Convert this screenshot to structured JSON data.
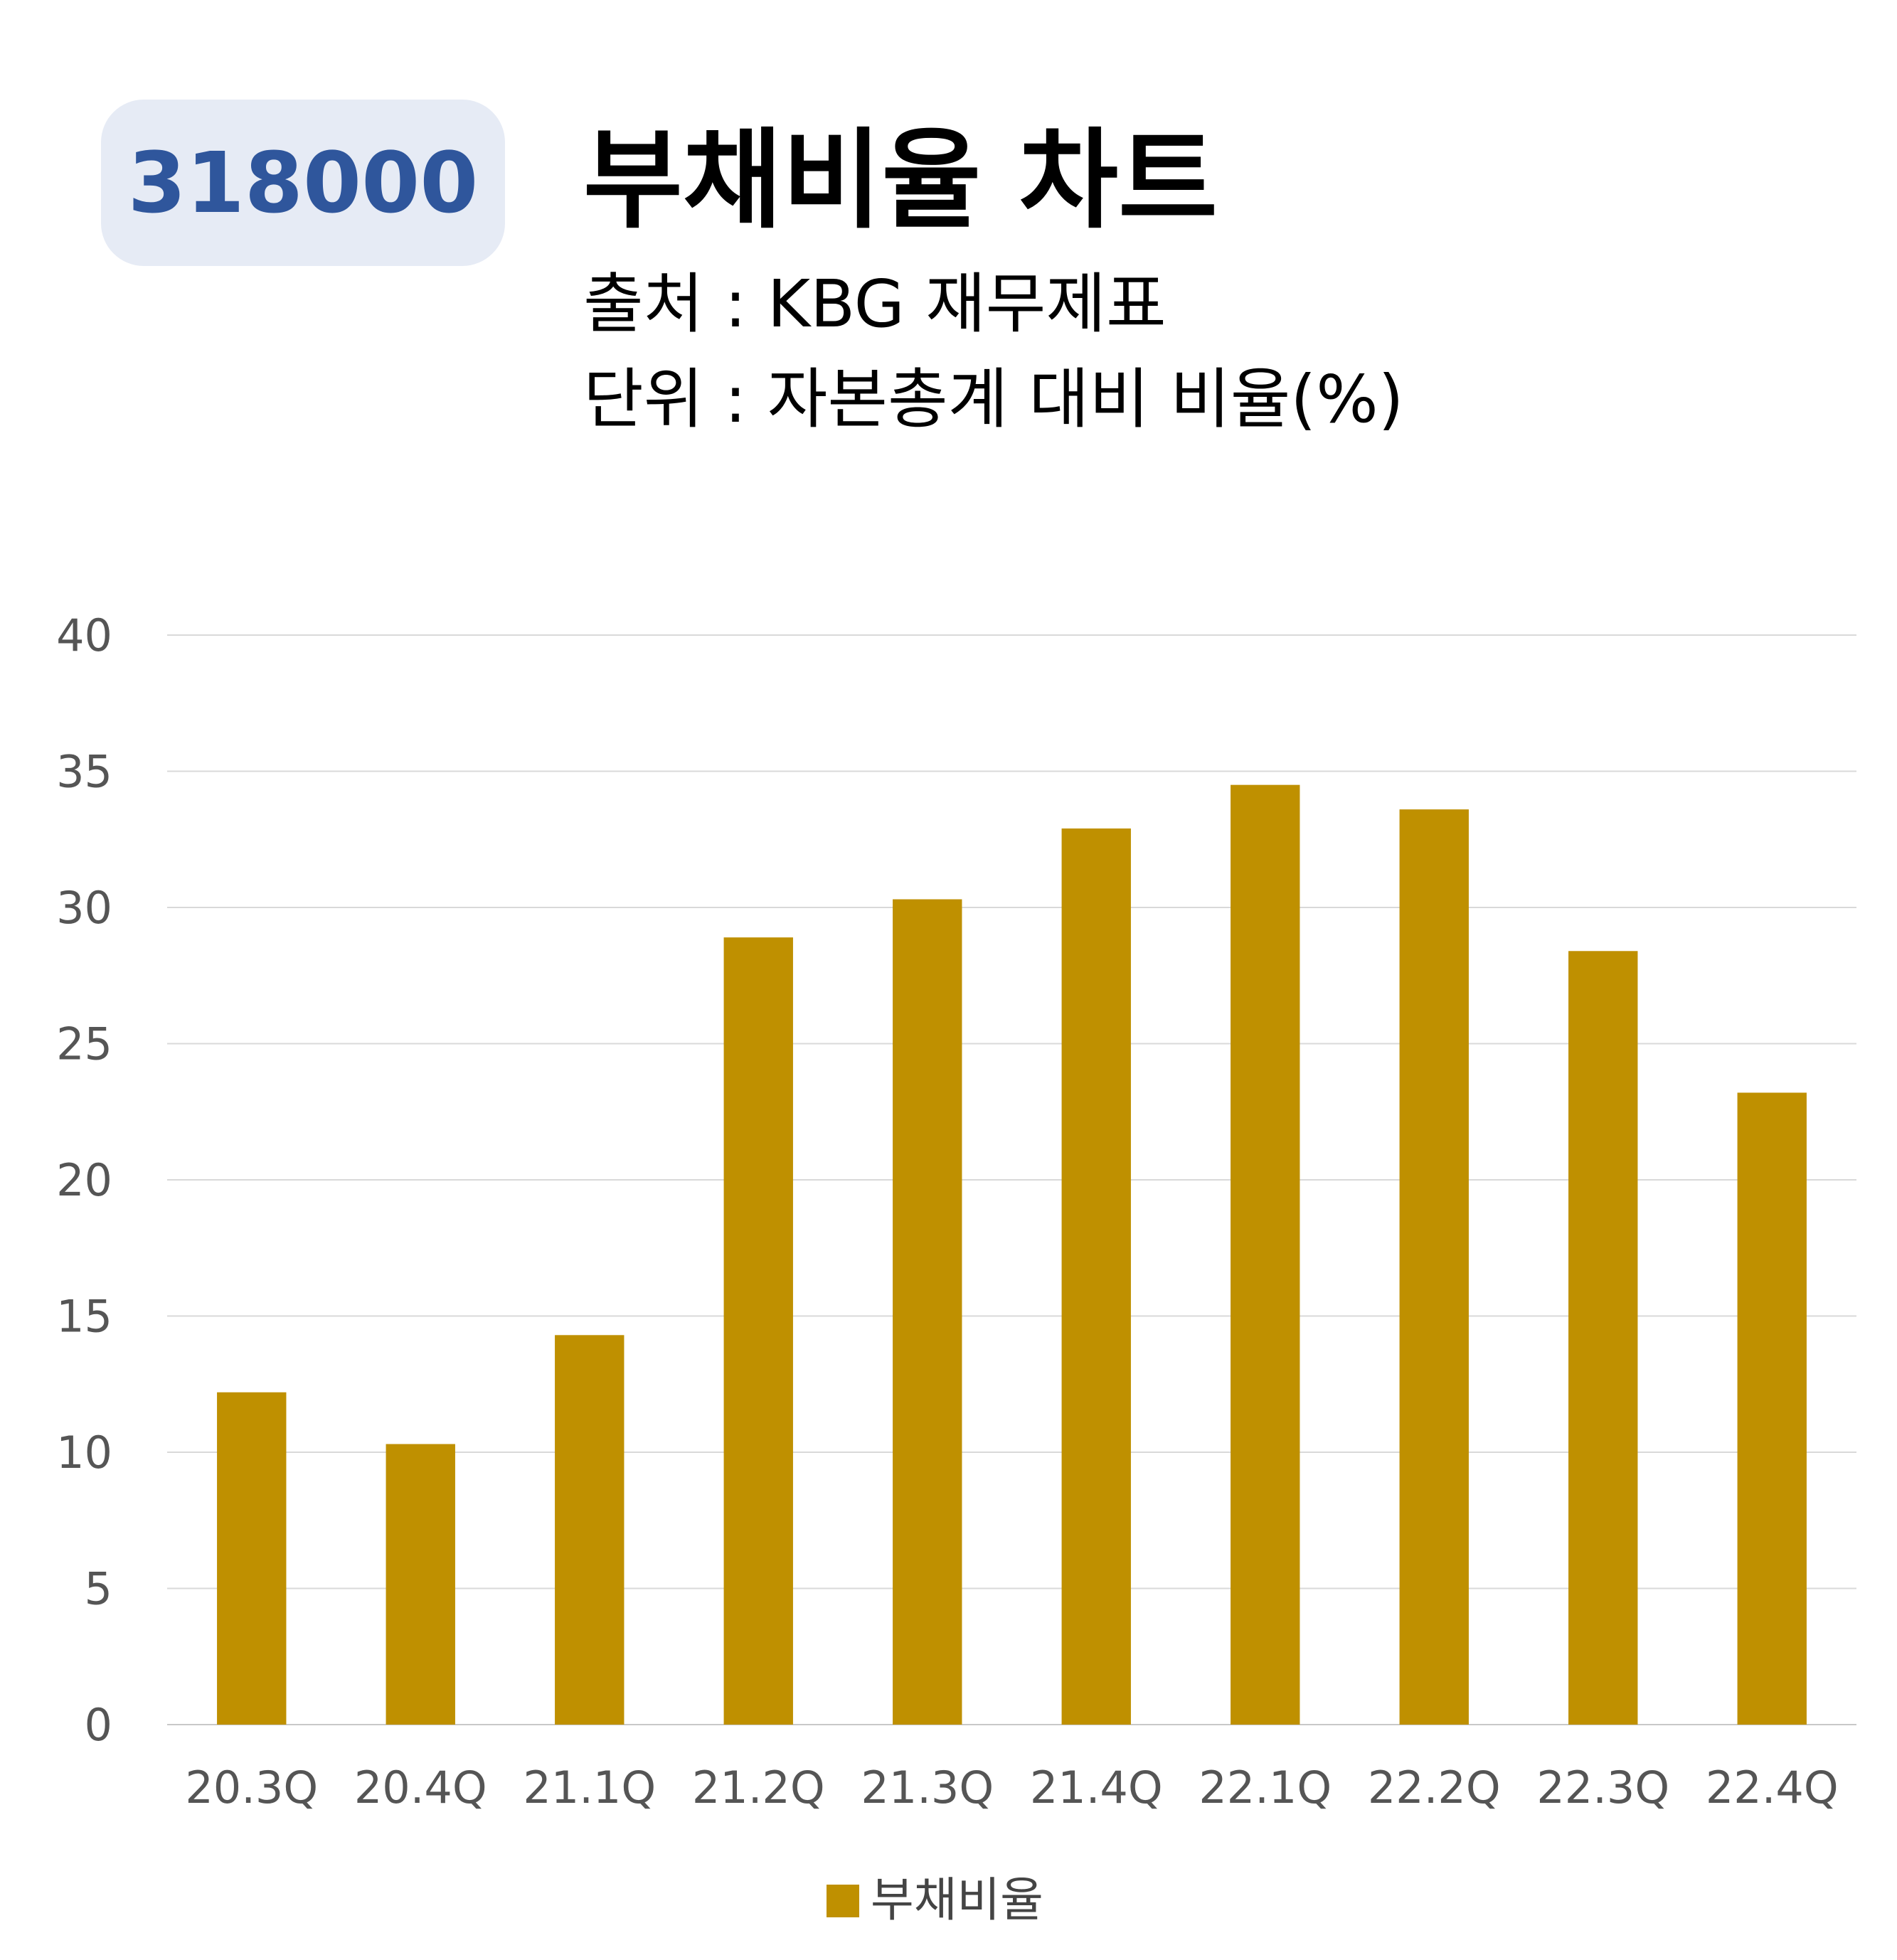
{
  "header": {
    "code": "318000",
    "title": "부채비율 차트",
    "source": "출처 : KBG 재무제표",
    "unit": "단위 : 자본총계 대비 비율(%)"
  },
  "chart_data": {
    "type": "bar",
    "categories": [
      "20.3Q",
      "20.4Q",
      "21.1Q",
      "21.2Q",
      "21.3Q",
      "21.4Q",
      "22.1Q",
      "22.2Q",
      "22.3Q",
      "22.4Q"
    ],
    "series": [
      {
        "name": "부채비율",
        "values": [
          12.2,
          10.3,
          14.3,
          28.9,
          30.3,
          32.9,
          34.5,
          33.6,
          28.4,
          23.2
        ],
        "color": "#bf9000"
      }
    ],
    "ylim": [
      0,
      40
    ],
    "yticks": [
      0,
      5,
      10,
      15,
      20,
      25,
      30,
      35,
      40
    ],
    "grid": true,
    "legend_position": "bottom-center",
    "colors": {
      "bar": "#bf9000",
      "grid": "#d9d9d9",
      "tick": "#555555"
    }
  }
}
